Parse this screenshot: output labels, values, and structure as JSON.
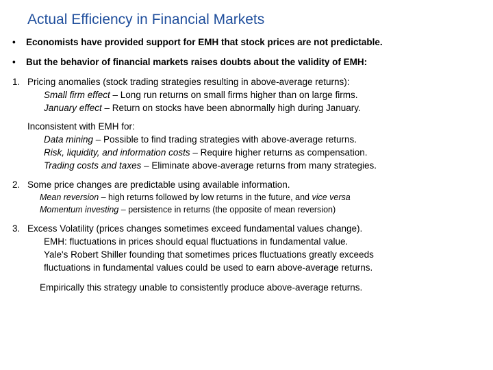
{
  "title": "Actual Efficiency in Financial Markets",
  "bullets": [
    "Economists have provided support for EMH that stock prices are not predictable.",
    "But the behavior of financial markets raises doubts about the validity of EMH:"
  ],
  "item1": {
    "num": "1.",
    "lead": "Pricing anomalies (stock trading strategies resulting in above-average returns):",
    "sfe_label": "Small firm effect",
    "sfe_text": " – Long run returns on small firms higher than on large firms.",
    "jan_label": "January effect",
    "jan_text": " – Return on stocks have been abnormally high during January.",
    "inconsist": "Inconsistent with EMH for:",
    "dm_label": "Data mining",
    "dm_text": " – Possible to find trading strategies with above-average returns.",
    "risk_label": "Risk, liquidity, and information costs",
    "risk_text": " – Require higher returns as compensation.",
    "tc_label": "Trading costs and taxes",
    "tc_text": " – Eliminate above-average returns from many strategies."
  },
  "item2": {
    "num": "2.",
    "lead": "Some price changes are predictable using available information.",
    "mr_label": "Mean reversion",
    "mr_text1": " – high returns  followed by low returns in the future, and ",
    "mr_vice": "vice versa",
    "mom_label": "Momentum investing",
    "mom_text": " – persistence in returns (the opposite of mean reversion)"
  },
  "item3": {
    "num": "3.",
    "lead": "Excess Volatility (prices changes sometimes exceed fundamental values change).",
    "l1": "EMH: fluctuations in prices should equal fluctuations in fundamental value.",
    "l2": "Yale's Robert Shiller founding that sometimes prices fluctuations greatly exceeds",
    "l3": "fluctuations in fundamental values could be used to earn above-average returns.",
    "trail": "Empirically this strategy unable to consistently produce above-average returns."
  },
  "colors": {
    "title": "#1f4e9c",
    "text": "#000000",
    "background": "#ffffff"
  },
  "fonts": {
    "family": "Arial",
    "title_size_pt": 16,
    "body_size_pt": 10
  }
}
